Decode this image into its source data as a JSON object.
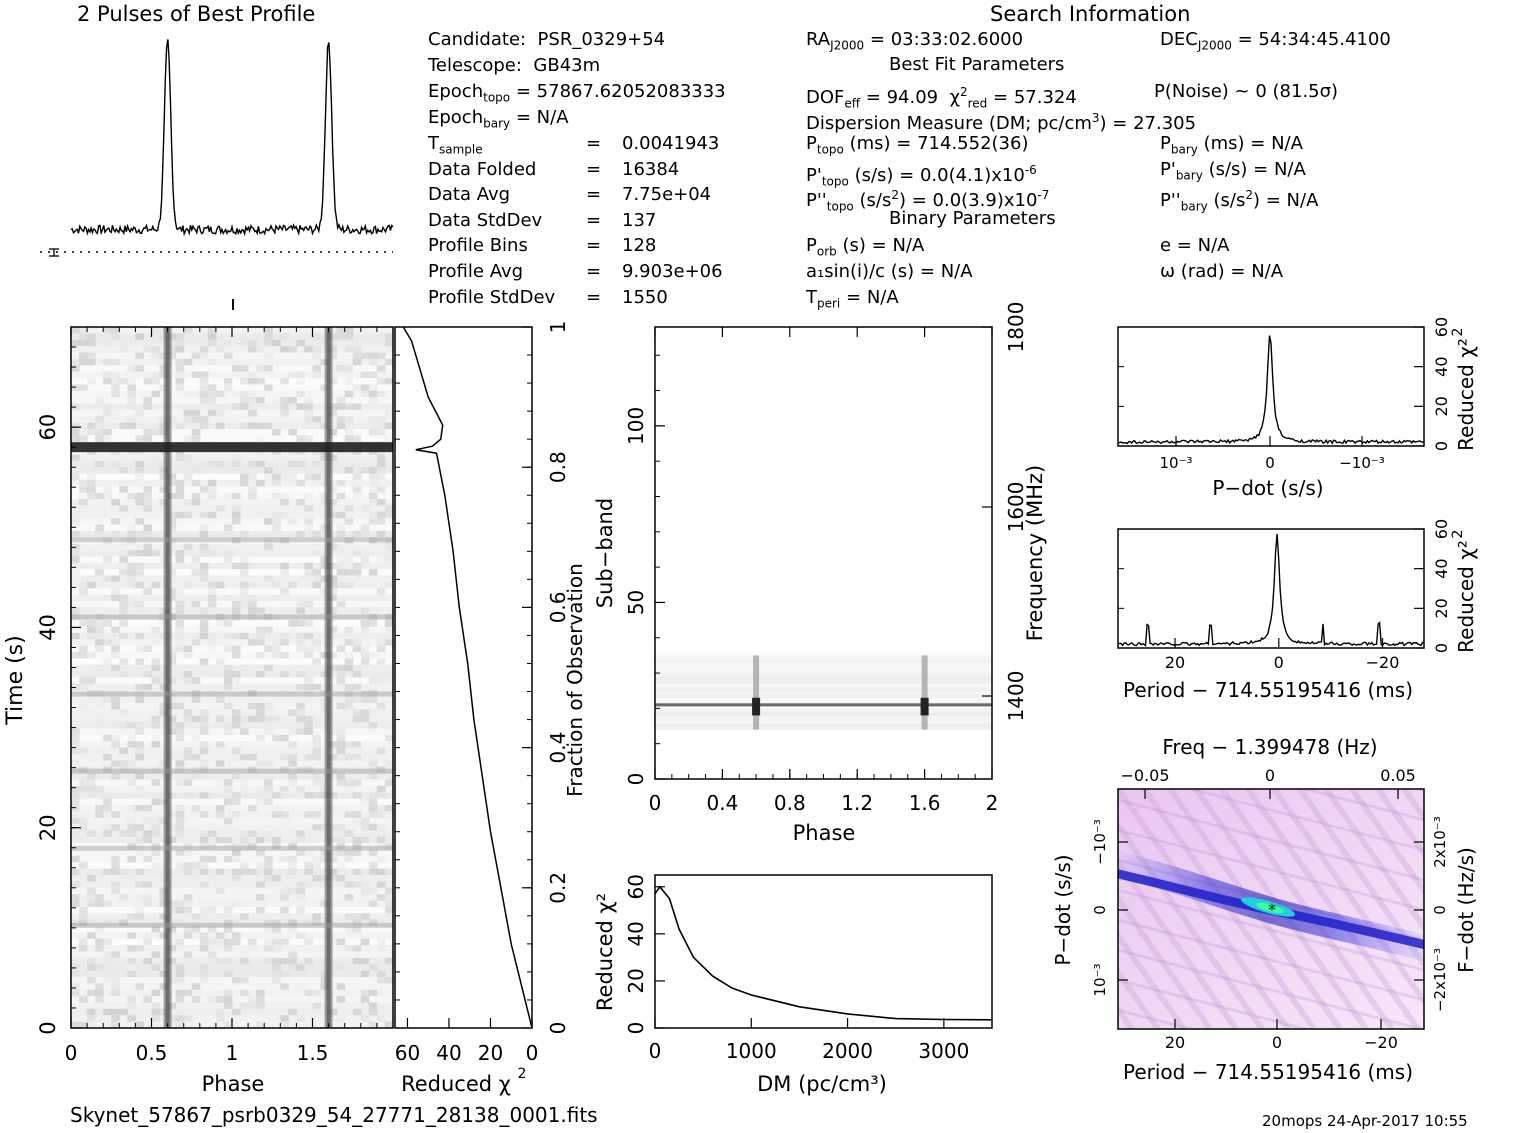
{
  "titles": {
    "profile_title": "2 Pulses of Best Profile",
    "search_title": "Search Information",
    "best_fit_title": "Best Fit Parameters",
    "binary_title": "Binary Parameters"
  },
  "info_left": [
    {
      "key": "Candidate:",
      "sub": "",
      "value": "PSR_0329+54"
    },
    {
      "key": "Telescope:",
      "sub": "",
      "value": "GB43m"
    },
    {
      "key": "Epoch",
      "sub": "topo",
      "value": "= 57867.62052083333"
    },
    {
      "key": "Epoch",
      "sub": "bary",
      "value": "= N/A"
    },
    {
      "key": "T",
      "sub": "sample",
      "value": "0.0041943"
    },
    {
      "key": "Data Folded",
      "sub": "",
      "value": "16384"
    },
    {
      "key": "Data Avg",
      "sub": "",
      "value": "7.75e+04"
    },
    {
      "key": "Data StdDev",
      "sub": "",
      "value": "137"
    },
    {
      "key": "Profile Bins",
      "sub": "",
      "value": "128"
    },
    {
      "key": "Profile Avg",
      "sub": "",
      "value": "9.903e+06"
    },
    {
      "key": "Profile StdDev",
      "sub": "",
      "value": "1550"
    }
  ],
  "info_mid": {
    "ra": "= 03:33:02.6000",
    "dof": "= 94.09",
    "chi2": "= 57.324",
    "dm_line": "Dispersion Measure (DM; pc/cm",
    "dm_value": ") = 27.305",
    "ptopo": "(ms) =  714.552(36)",
    "pdot_topo": "(s/s) = 0.0(4.1)x10",
    "pdot_topo_exp": "-6",
    "pddot_topo": "(s/s",
    "pddot_topo_val": ") = 0.0(3.9)x10",
    "pddot_topo_exp": "-7",
    "porb": "(s) = N/A",
    "a1sini": "a₁sin(i)/c (s) = N/A",
    "tperi": "= N/A"
  },
  "info_right": {
    "dec": "= 54:34:45.4100",
    "pnoise": "P(Noise) ~ 0   (81.5σ)",
    "pbary": "(ms) = N/A",
    "pdot_bary": "(s/s) = N/A",
    "pddot_bary": ") = N/A",
    "ecc": "e = N/A",
    "omega": "ω (rad) = N/A"
  },
  "footer": {
    "filename": "Skynet_57867_psrb0329_54_27771_28138_0001.fits",
    "stamp": "20mops 24-Apr-2017 10:55"
  },
  "chart_data": [
    {
      "type": "line",
      "title": "2 Pulses of Best Profile",
      "x_range": [
        0,
        2
      ],
      "peaks_phase": [
        0.6,
        1.6
      ],
      "baseline_normalized": 0.14
    },
    {
      "type": "heatmap",
      "name": "time-phase",
      "xlabel": "Phase",
      "ylabel": "Time (s)",
      "xlim": [
        0,
        2
      ],
      "ylim": [
        0,
        70
      ],
      "xticks": [
        "0",
        "0.5",
        "1",
        "1.5"
      ],
      "yticks": [
        "0",
        "20",
        "40",
        "60"
      ],
      "pulse_phase": [
        0.6,
        1.6
      ],
      "rfi_band_time_s": 58
    },
    {
      "type": "line",
      "name": "reduced-chi2-vs-fraction",
      "xlabel": "Reduced χ²",
      "ylabel": "Fraction of Observation",
      "xticks": [
        "60",
        "40",
        "20",
        "0"
      ],
      "yticks": [
        "0",
        "0.2",
        "0.4",
        "0.6",
        "0.8",
        "1"
      ],
      "points": [
        [
          0,
          0
        ],
        [
          5,
          0.06
        ],
        [
          10,
          0.12
        ],
        [
          15,
          0.2
        ],
        [
          20,
          0.28
        ],
        [
          24,
          0.36
        ],
        [
          28,
          0.44
        ],
        [
          31,
          0.52
        ],
        [
          35,
          0.6
        ],
        [
          38,
          0.68
        ],
        [
          42,
          0.76
        ],
        [
          46,
          0.82
        ],
        [
          56,
          0.825
        ],
        [
          48,
          0.83
        ],
        [
          44,
          0.84
        ],
        [
          43,
          0.86
        ],
        [
          50,
          0.9
        ],
        [
          58,
          0.98
        ],
        [
          62,
          1.0
        ]
      ]
    },
    {
      "type": "heatmap",
      "name": "subband-phase",
      "xlabel": "Phase",
      "ylabel": "Sub−band",
      "y2label": "Frequency (MHz)",
      "xlim": [
        0,
        2
      ],
      "ylim": [
        0,
        128
      ],
      "xticks": [
        "0",
        "0.4",
        "0.8",
        "1.2",
        "1.6",
        "2"
      ],
      "yticks": [
        "0",
        "50",
        "100"
      ],
      "y2ticks": [
        "1400",
        "1600",
        "1800"
      ],
      "signal_subbands": [
        14,
        35
      ],
      "pulse_phase": [
        0.6,
        1.6
      ]
    },
    {
      "type": "line",
      "name": "dm-curve",
      "xlabel": "DM (pc/cm³)",
      "ylabel": "Reduced χ²",
      "xlim": [
        0,
        3500
      ],
      "ylim": [
        0,
        65
      ],
      "xticks": [
        "0",
        "1000",
        "2000",
        "3000"
      ],
      "yticks": [
        "0",
        "20",
        "40",
        "60"
      ],
      "points": [
        [
          0,
          57
        ],
        [
          50,
          60
        ],
        [
          150,
          55
        ],
        [
          250,
          42
        ],
        [
          400,
          30
        ],
        [
          600,
          22
        ],
        [
          800,
          17
        ],
        [
          1000,
          14
        ],
        [
          1500,
          9
        ],
        [
          2000,
          6
        ],
        [
          2500,
          4
        ],
        [
          3000,
          3.6
        ],
        [
          3500,
          3.5
        ]
      ]
    },
    {
      "type": "line",
      "name": "pdot-curve",
      "xlabel": "P−dot (s/s)",
      "ylabel": "Reduced χ²",
      "ylim": [
        0,
        60
      ],
      "xticks": [
        "10⁻³",
        "0",
        "−10⁻³"
      ],
      "yticks": [
        "0",
        "20",
        "40",
        "60"
      ],
      "peak": 57
    },
    {
      "type": "line",
      "name": "period-curve",
      "xlabel": "Period − 714.55195416 (ms)",
      "ylabel": "Reduced χ²",
      "xlim": [
        31,
        -28
      ],
      "ylim": [
        0,
        60
      ],
      "xticks": [
        "20",
        "0",
        "−20"
      ],
      "yticks": [
        "0",
        "20",
        "40",
        "60"
      ],
      "peak": 57
    },
    {
      "type": "heatmap",
      "name": "period-pdot",
      "xlabel": "Period − 714.55195416 (ms)",
      "x2label": "Freq − 1.399478 (Hz)",
      "ylabel": "P−dot (s/s)",
      "y2label": "F−dot (Hz/s)",
      "xticks": [
        "20",
        "0",
        "−20"
      ],
      "x2ticks": [
        "−0.05",
        "0",
        "0.05"
      ],
      "yticks": [
        "10⁻³",
        "0",
        "−10⁻³"
      ],
      "y2ticks": [
        "−2x10⁻³",
        "0",
        "2x10⁻³"
      ]
    }
  ]
}
